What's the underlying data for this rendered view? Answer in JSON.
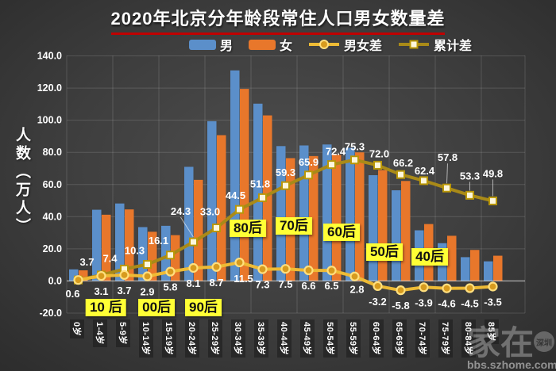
{
  "title": "2020年北京分年龄段常住人口男女数量差",
  "legend": [
    {
      "label": "男",
      "type": "bar",
      "color": "#5b8fca"
    },
    {
      "label": "女",
      "type": "bar",
      "color": "#e8772b"
    },
    {
      "label": "男女差",
      "type": "line-circle",
      "color": "#eebb35"
    },
    {
      "label": "累计差",
      "type": "line-square",
      "color": "#a98a18"
    }
  ],
  "watermark": {
    "brand": "家在",
    "badge": "深圳",
    "url": "bbs.szhome.com"
  },
  "chart_data": {
    "type": "combo-bar-line",
    "title": "2020年北京分年龄段常住人口男女数量差",
    "ylabel": "人数（万人）",
    "ylim": [
      -20,
      140
    ],
    "yticks": [
      140,
      120,
      100,
      80,
      60,
      40,
      20,
      0,
      -20
    ],
    "grid": true,
    "legend_position": "top",
    "categories": [
      "0岁",
      "1-4岁",
      "5-9岁",
      "10-14岁",
      "15-19岁",
      "20-24岁",
      "25-29岁",
      "30-34岁",
      "35-39岁",
      "40-44岁",
      "45-49岁",
      "50-54岁",
      "55-59岁",
      "60-64岁",
      "65-69岁",
      "70-74岁",
      "75-79岁",
      "80-84岁",
      "85岁"
    ],
    "series": [
      {
        "name": "男",
        "type": "bar",
        "color": "#5b8fca",
        "values": [
          7.2,
          44.3,
          48.2,
          33.5,
          34.3,
          71.0,
          99.4,
          131.0,
          110.3,
          83.9,
          84.3,
          84.9,
          82.8,
          65.8,
          56.4,
          31.5,
          23.5,
          14.8,
          12.2
        ]
      },
      {
        "name": "女",
        "type": "bar",
        "color": "#e8772b",
        "values": [
          6.6,
          41.2,
          44.5,
          30.6,
          28.5,
          62.9,
          90.7,
          119.5,
          103.0,
          76.4,
          77.7,
          78.4,
          80.0,
          69.0,
          62.2,
          35.4,
          28.1,
          19.3,
          15.7
        ]
      },
      {
        "name": "男女差",
        "type": "line",
        "marker": "circle",
        "color": "#eebb35",
        "marker_fill": "#d79b1e",
        "marker_stroke": "#ffdf7e",
        "labels_visible": true,
        "values": [
          0.6,
          3.1,
          3.7,
          2.9,
          5.8,
          8.1,
          8.7,
          11.5,
          7.3,
          7.5,
          6.6,
          6.5,
          2.8,
          -3.2,
          -5.8,
          -3.9,
          -4.6,
          -4.5,
          -3.5
        ]
      },
      {
        "name": "累计差",
        "type": "line",
        "marker": "square",
        "color": "#a98a18",
        "marker_fill": "#fdf7dd",
        "marker_stroke": "#b99708",
        "labels_visible": true,
        "first_label_hidden": true,
        "values": [
          0.6,
          3.7,
          7.4,
          10.3,
          16.1,
          24.3,
          33.0,
          44.5,
          51.8,
          59.3,
          65.9,
          72.4,
          75.3,
          72.0,
          66.2,
          62.4,
          57.8,
          53.3,
          49.8
        ]
      }
    ],
    "label_offsets": {
      "cum_default": {
        "dx": 0,
        "dy": -16
      },
      "cum": {
        "1": {
          "dx": -18,
          "dy": -16
        },
        "2": {
          "dx": -18,
          "dy": -13
        },
        "3": {
          "dx": -16,
          "dy": -17
        },
        "4": {
          "dx": -15,
          "dy": -18
        },
        "5": {
          "dx": -16,
          "dy": -38,
          "leader": true
        },
        "6": {
          "dx": -8,
          "dy": -20
        },
        "7": {
          "dx": -5,
          "dy": -17
        },
        "8": {
          "dx": -3,
          "dy": -17
        },
        "11": {
          "dx": 5,
          "dy": -16
        },
        "13": {
          "dx": 2,
          "dy": -14
        },
        "14": {
          "dx": 3,
          "dy": -14
        },
        "15": {
          "dx": 1,
          "dy": -12
        },
        "16": {
          "dx": 1,
          "dy": -38,
          "leader": true
        },
        "17": {
          "dx": 0,
          "dy": -24,
          "leader": true
        },
        "18": {
          "dx": 0,
          "dy": -34,
          "leader": true
        }
      },
      "diff_default": {
        "dx": 0,
        "dy": 20
      },
      "diff": {
        "0": {
          "dx": -7,
          "dy": 18
        },
        "7": {
          "dx": 5,
          "dy": 21
        },
        "12": {
          "dx": 3,
          "dy": 17
        }
      }
    },
    "annotations": [
      {
        "text": "10 后",
        "xi": 1.7,
        "val": -16.5
      },
      {
        "text": "00后",
        "xi": 3.9,
        "val": -16.5
      },
      {
        "text": "90后",
        "xi": 5.93,
        "val": -16.5
      },
      {
        "text": "80后",
        "xi": 7.86,
        "val": 32.7
      },
      {
        "text": "70后",
        "xi": 9.86,
        "val": 34.2
      },
      {
        "text": "60后",
        "xi": 11.93,
        "val": 30.5
      },
      {
        "text": "50后",
        "xi": 13.79,
        "val": 17.9
      },
      {
        "text": "40后",
        "xi": 15.76,
        "val": 15.0
      }
    ],
    "colors": {
      "background_center": "#4e4e4e",
      "background_edge": "#292929",
      "grid": "rgba(255,255,255,0.14)",
      "zero_axis": "rgba(255,255,255,0.45)",
      "data_label": "#ffffff",
      "annotation_bg": "#ffff35",
      "title_underline": "#c00000"
    }
  }
}
